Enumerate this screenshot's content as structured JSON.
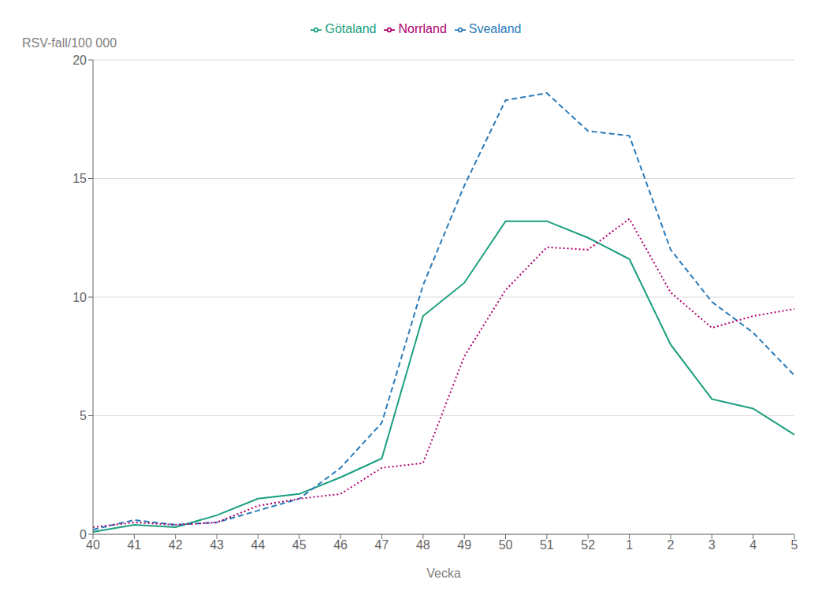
{
  "chart_data": {
    "type": "line",
    "categories": [
      "40",
      "41",
      "42",
      "43",
      "44",
      "45",
      "46",
      "47",
      "48",
      "49",
      "50",
      "51",
      "52",
      "1",
      "2",
      "3",
      "4",
      "5"
    ],
    "series": [
      {
        "name": "Götaland",
        "color": "#1a9e7e",
        "line_style": "solid",
        "values": [
          0.1,
          0.4,
          0.3,
          0.8,
          1.5,
          1.7,
          2.4,
          3.2,
          9.2,
          10.6,
          13.2,
          13.2,
          12.5,
          11.6,
          8.0,
          5.7,
          5.3,
          4.2
        ]
      },
      {
        "name": "Svealand",
        "color": "#2b7bba",
        "line_style": "dashed",
        "values": [
          0.2,
          0.6,
          0.4,
          0.5,
          1.0,
          1.5,
          2.8,
          4.7,
          10.5,
          14.7,
          18.3,
          18.6,
          17.0,
          16.8,
          12.0,
          9.8,
          8.5,
          6.7
        ]
      },
      {
        "name": "Norrland",
        "color": "#b0006e",
        "line_style": "dotted",
        "values": [
          0.3,
          0.5,
          0.4,
          0.5,
          1.2,
          1.5,
          1.7,
          2.8,
          3.0,
          7.5,
          10.3,
          12.1,
          12.0,
          13.3,
          10.2,
          8.7,
          9.2,
          9.5
        ]
      }
    ],
    "xlabel": "Vecka",
    "ylabel": "RSV-fall/100 000",
    "ylim": [
      0,
      20
    ],
    "yticks": [
      0,
      5,
      10,
      15,
      20
    ],
    "grid": "y",
    "legend": "top"
  }
}
